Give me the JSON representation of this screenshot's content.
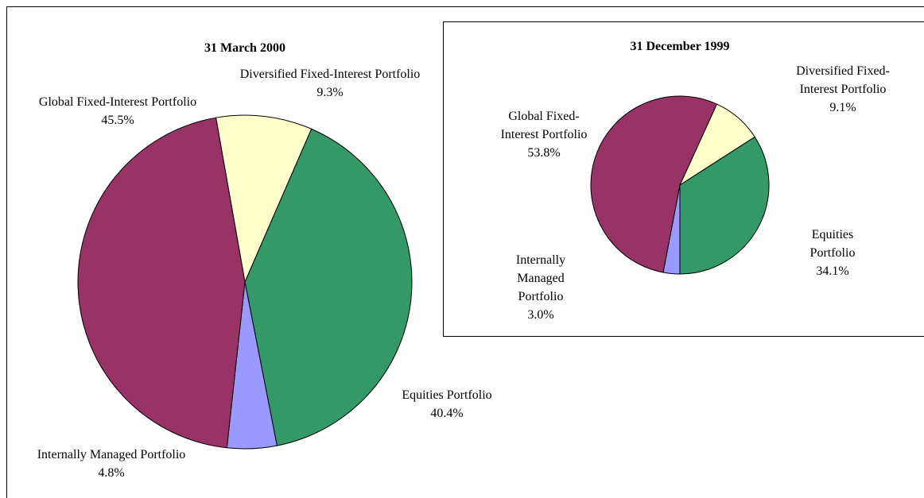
{
  "chart_data": [
    {
      "type": "pie",
      "title": "31 March 2000",
      "categories": [
        "Diversified Fixed-Interest Portfolio",
        "Equities Portfolio",
        "Internally Managed Portfolio",
        "Global Fixed-Interest Portfolio"
      ],
      "values": [
        9.3,
        40.4,
        4.8,
        45.5
      ],
      "value_labels": [
        "9.3%",
        "40.4%",
        "4.8%",
        "45.5%"
      ],
      "colors": [
        "#ffffcc",
        "#339966",
        "#9999ff",
        "#993366"
      ],
      "start_angle": -10
    },
    {
      "type": "pie",
      "title": "31 December 1999",
      "categories": [
        "Diversified Fixed-Interest Portfolio",
        "Equities Portfolio",
        "Internally Managed Portfolio",
        "Global Fixed-Interest Portfolio"
      ],
      "values": [
        9.1,
        34.1,
        3.0,
        53.8
      ],
      "value_labels": [
        "9.1%",
        "34.1%",
        "3.0%",
        "53.8%"
      ],
      "colors": [
        "#ffffcc",
        "#339966",
        "#9999ff",
        "#993366"
      ],
      "start_angle": 24.5
    }
  ]
}
